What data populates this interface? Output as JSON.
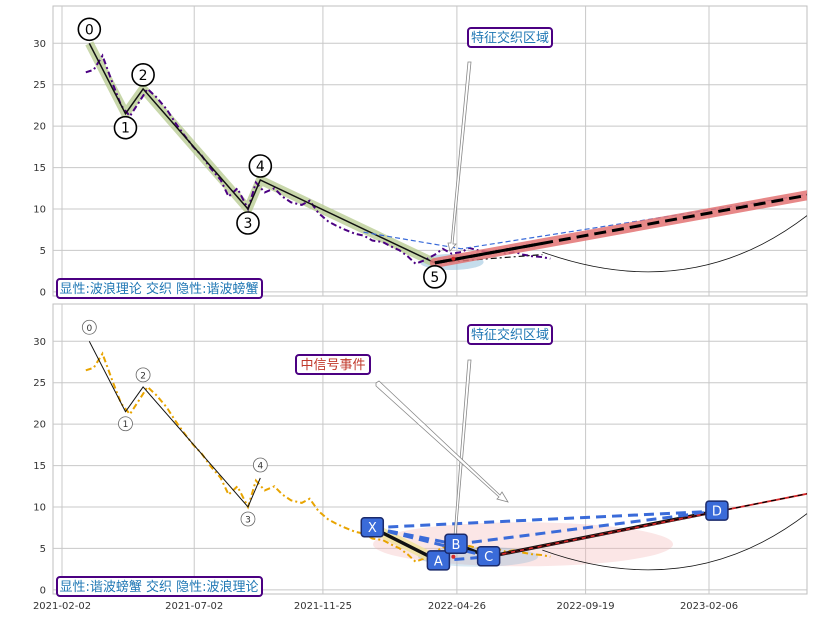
{
  "colors": {
    "price_top": "#4b0082",
    "price_bottom": "#e8a400",
    "wave_halo": "#b5c98e",
    "trend_red": "#e37373",
    "harmonic_blue": "#3a6bd9",
    "box_border": "#4b0082",
    "box_text_blue": "#1f77b4",
    "box_text_red": "#c0392b",
    "grid": "#c8c8c8"
  },
  "chart_data": [
    {
      "type": "line",
      "panel": "top",
      "y_ticks": [
        "0",
        "5",
        "10",
        "15",
        "20",
        "25",
        "30"
      ],
      "ylim": [
        -0.5,
        34.5
      ],
      "grid": true,
      "price_series": {
        "x": [
          "2021-03-01",
          "2021-03-10",
          "2021-03-20",
          "2021-04-01",
          "2021-04-10",
          "2021-04-20",
          "2021-05-01",
          "2021-05-10",
          "2021-05-20",
          "2021-06-01",
          "2021-06-10",
          "2021-06-20",
          "2021-07-01",
          "2021-07-10",
          "2021-07-20",
          "2021-08-01",
          "2021-08-10",
          "2021-08-20",
          "2021-09-01",
          "2021-09-10",
          "2021-09-20",
          "2021-10-01",
          "2021-10-10",
          "2021-10-20",
          "2021-11-01",
          "2021-11-10",
          "2021-11-20",
          "2021-12-01",
          "2021-12-10",
          "2021-12-20",
          "2022-01-01",
          "2022-01-10",
          "2022-01-20",
          "2022-02-01",
          "2022-02-10",
          "2022-02-20",
          "2022-03-01",
          "2022-03-10",
          "2022-03-20",
          "2022-04-01",
          "2022-04-10",
          "2022-04-20",
          "2022-05-01",
          "2022-05-10",
          "2022-05-20",
          "2022-06-01",
          "2022-06-10",
          "2022-06-20",
          "2022-07-01",
          "2022-07-10",
          "2022-07-20",
          "2022-08-01",
          "2022-08-10"
        ],
        "y": [
          26.5,
          26.8,
          28.5,
          25.0,
          22.5,
          21.2,
          23.0,
          24.5,
          23.5,
          22.0,
          20.5,
          19.0,
          17.5,
          16.5,
          15.0,
          13.5,
          11.5,
          12.5,
          10.0,
          13.2,
          12.0,
          12.5,
          11.5,
          10.8,
          10.5,
          11.0,
          9.5,
          8.5,
          8.0,
          7.5,
          7.0,
          6.8,
          6.2,
          6.0,
          5.5,
          5.0,
          4.3,
          3.4,
          3.8,
          4.5,
          5.2,
          4.6,
          4.8,
          5.3,
          5.0,
          4.8,
          5.0,
          4.6,
          4.8,
          4.5,
          4.3,
          4.2,
          4.0
        ]
      },
      "wave_points": {
        "labels": [
          "0",
          "1",
          "2",
          "3",
          "4",
          "5"
        ],
        "x": [
          "2021-03-05",
          "2021-04-15",
          "2021-05-05",
          "2021-09-01",
          "2021-09-15",
          "2022-04-01"
        ],
        "y": [
          30,
          21.5,
          24.5,
          10,
          13.5,
          3.5
        ]
      },
      "channel": {
        "upper": {
          "x": [
            "2022-01-10",
            "2022-05-01",
            "2023-07-01"
          ],
          "y": [
            7.2,
            5.2,
            12.3
          ]
        },
        "lower": {
          "x": [
            "2022-04-01",
            "2022-08-01"
          ],
          "y": [
            3.5,
            4.5
          ]
        }
      },
      "trend_projection": {
        "x": [
          "2022-04-01",
          "2023-07-01"
        ],
        "y": [
          3.5,
          12.3
        ]
      },
      "curve_arrow": {
        "x": [
          "2022-08-01",
          "2023-07-01"
        ],
        "y": [
          4.8,
          12.3
        ]
      },
      "annotations": {
        "feature_box": "特征交织区域",
        "mode_box": "显性:波浪理论 交织 隐性:谐波螃蟹"
      }
    },
    {
      "type": "line",
      "panel": "bottom",
      "y_ticks": [
        "0",
        "5",
        "10",
        "15",
        "20",
        "25",
        "30"
      ],
      "ylim": [
        -0.5,
        34.5
      ],
      "grid": true,
      "x_tick_labels": [
        "2021-02-02",
        "2021-07-02",
        "2021-11-25",
        "2022-04-26",
        "2022-09-19",
        "2023-02-06"
      ],
      "price_series": {
        "x": [
          "2021-03-01",
          "2021-03-10",
          "2021-03-20",
          "2021-04-01",
          "2021-04-10",
          "2021-04-20",
          "2021-05-01",
          "2021-05-10",
          "2021-05-20",
          "2021-06-01",
          "2021-06-10",
          "2021-06-20",
          "2021-07-01",
          "2021-07-10",
          "2021-07-20",
          "2021-08-01",
          "2021-08-10",
          "2021-08-20",
          "2021-09-01",
          "2021-09-10",
          "2021-09-20",
          "2021-10-01",
          "2021-10-10",
          "2021-10-20",
          "2021-11-01",
          "2021-11-10",
          "2021-11-20",
          "2021-12-01",
          "2021-12-10",
          "2021-12-20",
          "2022-01-01",
          "2022-01-10",
          "2022-01-20",
          "2022-02-01",
          "2022-02-10",
          "2022-02-20",
          "2022-03-01",
          "2022-03-10",
          "2022-03-20",
          "2022-04-01",
          "2022-04-10",
          "2022-04-20",
          "2022-05-01",
          "2022-05-10",
          "2022-05-20",
          "2022-06-01",
          "2022-06-10",
          "2022-06-20",
          "2022-07-01",
          "2022-07-10",
          "2022-07-20",
          "2022-08-01",
          "2022-08-10"
        ],
        "y": [
          26.5,
          26.8,
          28.5,
          25.0,
          22.5,
          21.2,
          23.0,
          24.5,
          23.5,
          22.0,
          20.5,
          19.0,
          17.5,
          16.5,
          15.0,
          13.5,
          11.5,
          12.5,
          10.0,
          13.2,
          12.0,
          12.5,
          11.5,
          10.8,
          10.5,
          11.0,
          9.5,
          8.5,
          8.0,
          7.5,
          7.0,
          6.8,
          6.2,
          6.0,
          5.5,
          5.0,
          4.3,
          3.4,
          3.8,
          4.5,
          5.2,
          4.6,
          4.8,
          5.3,
          5.0,
          4.8,
          5.0,
          4.6,
          4.8,
          4.5,
          4.3,
          4.2,
          4.0
        ]
      },
      "wave_points": {
        "labels": [
          "0",
          "1",
          "2",
          "3",
          "4"
        ],
        "x": [
          "2021-03-05",
          "2021-04-15",
          "2021-05-05",
          "2021-09-01",
          "2021-09-15"
        ],
        "y": [
          30,
          21.5,
          24.5,
          10,
          13.5
        ]
      },
      "harmonic_points": {
        "labels": [
          "X",
          "A",
          "B",
          "C",
          "D"
        ],
        "x": [
          "2022-01-20",
          "2022-04-05",
          "2022-04-25",
          "2022-06-01",
          "2023-02-15"
        ],
        "y": [
          7.5,
          3.5,
          5.5,
          4.0,
          9.5
        ]
      },
      "trend_projection": {
        "x": [
          "2022-06-01",
          "2023-07-01"
        ],
        "y": [
          4.0,
          12.3
        ]
      },
      "curve_arrow": {
        "x": [
          "2022-08-01",
          "2023-07-01"
        ],
        "y": [
          4.8,
          12.3
        ]
      },
      "annotations": {
        "feature_box": "特征交织区域",
        "signal_box": "中信号事件",
        "mode_box": "显性:谐波螃蟹 交织 隐性:波浪理论"
      }
    }
  ]
}
